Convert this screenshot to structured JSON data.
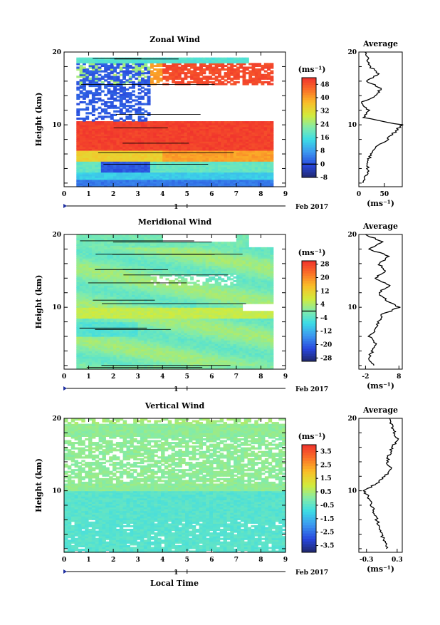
{
  "figure": {
    "x_axis_label": "Local Time",
    "date_marker": "1",
    "date_label": "Feb 2017"
  },
  "chart_data": [
    {
      "type": "heatmap",
      "title": "Zonal Wind",
      "ylabel": "Height (km)",
      "x_ticks": [
        "0",
        "1",
        "2",
        "3",
        "4",
        "5",
        "6",
        "7",
        "8",
        "9"
      ],
      "y_ticks": [
        "10",
        "20"
      ],
      "xlim": [
        0,
        9
      ],
      "ylim": [
        1.5,
        20
      ],
      "x_start": 0.5,
      "x_end": 8.5,
      "colorbar": {
        "unit": "(ms⁻¹)",
        "labels": [
          "48",
          "40",
          "32",
          "24",
          "16",
          "8",
          "0",
          "-8"
        ],
        "range": [
          -8,
          52
        ],
        "zero_line": 0
      },
      "profile": {
        "title": "Average",
        "xlabel": "(ms⁻¹)",
        "x_ticks": [
          "0",
          "50"
        ],
        "y_ticks": [
          "10",
          "20"
        ],
        "xlim": [
          0,
          85
        ],
        "heights": [
          2,
          3,
          4,
          5,
          6,
          7,
          8,
          9,
          10,
          11,
          12,
          13,
          14,
          15,
          16,
          17,
          18,
          19,
          20
        ],
        "values": [
          8,
          15,
          18,
          19,
          22,
          35,
          55,
          70,
          85,
          8,
          18,
          4,
          32,
          45,
          15,
          38,
          22,
          18,
          12
        ]
      }
    },
    {
      "type": "heatmap",
      "title": "Meridional Wind",
      "ylabel": "Height (km)",
      "x_ticks": [
        "0",
        "1",
        "2",
        "3",
        "4",
        "5",
        "6",
        "7",
        "8",
        "9"
      ],
      "y_ticks": [
        "10",
        "20"
      ],
      "xlim": [
        0,
        9
      ],
      "ylim": [
        1.5,
        20
      ],
      "x_start": 0.5,
      "x_end": 8.5,
      "colorbar": {
        "unit": "(ms⁻¹)",
        "labels": [
          "28",
          "20",
          "12",
          "4",
          "-4",
          "-12",
          "-20",
          "-28"
        ],
        "range": [
          -30,
          30
        ],
        "zero_line": 0
      },
      "profile": {
        "title": "Average",
        "xlabel": "(ms⁻¹)",
        "x_ticks": [
          "-2",
          "8"
        ],
        "y_ticks": [
          "10",
          "20"
        ],
        "xlim": [
          -4,
          9
        ],
        "heights": [
          2,
          3,
          4,
          5,
          6,
          7,
          8,
          9,
          10,
          11,
          12,
          13,
          14,
          15,
          16,
          17,
          18,
          19,
          20
        ],
        "values": [
          1,
          -1,
          0,
          1,
          -1,
          1,
          2,
          3,
          8,
          4,
          2,
          5,
          1,
          4,
          2,
          5,
          -1,
          3,
          -2
        ]
      }
    },
    {
      "type": "heatmap",
      "title": "Vertical Wind",
      "ylabel": "Height (km)",
      "x_ticks": [
        "0",
        "1",
        "2",
        "3",
        "4",
        "5",
        "6",
        "7",
        "8",
        "9"
      ],
      "y_ticks": [
        "10",
        "20"
      ],
      "xlim": [
        0,
        9
      ],
      "ylim": [
        1.5,
        20
      ],
      "x_start": 0,
      "x_end": 9,
      "colorbar": {
        "unit": "(ms⁻¹)",
        "labels": [
          "3.5",
          "2.5",
          "1.5",
          "0.5",
          "-0.5",
          "-1.5",
          "-2.5",
          "-3.5"
        ],
        "range": [
          -4,
          4
        ],
        "zero_line": null
      },
      "profile": {
        "title": "Average",
        "xlabel": "(ms⁻¹)",
        "x_ticks": [
          "-0.3",
          "0.3"
        ],
        "y_ticks": [
          "10",
          "20"
        ],
        "xlim": [
          -0.45,
          0.4
        ],
        "heights": [
          2,
          3,
          4,
          5,
          6,
          7,
          8,
          9,
          10,
          11,
          12,
          13,
          14,
          15,
          16,
          17,
          18,
          19,
          20
        ],
        "values": [
          0.1,
          0.05,
          0.0,
          -0.05,
          -0.1,
          -0.15,
          -0.2,
          -0.25,
          -0.35,
          -0.1,
          0.05,
          0.2,
          0.1,
          0.15,
          0.2,
          0.3,
          0.25,
          0.2,
          0.15
        ]
      }
    }
  ]
}
